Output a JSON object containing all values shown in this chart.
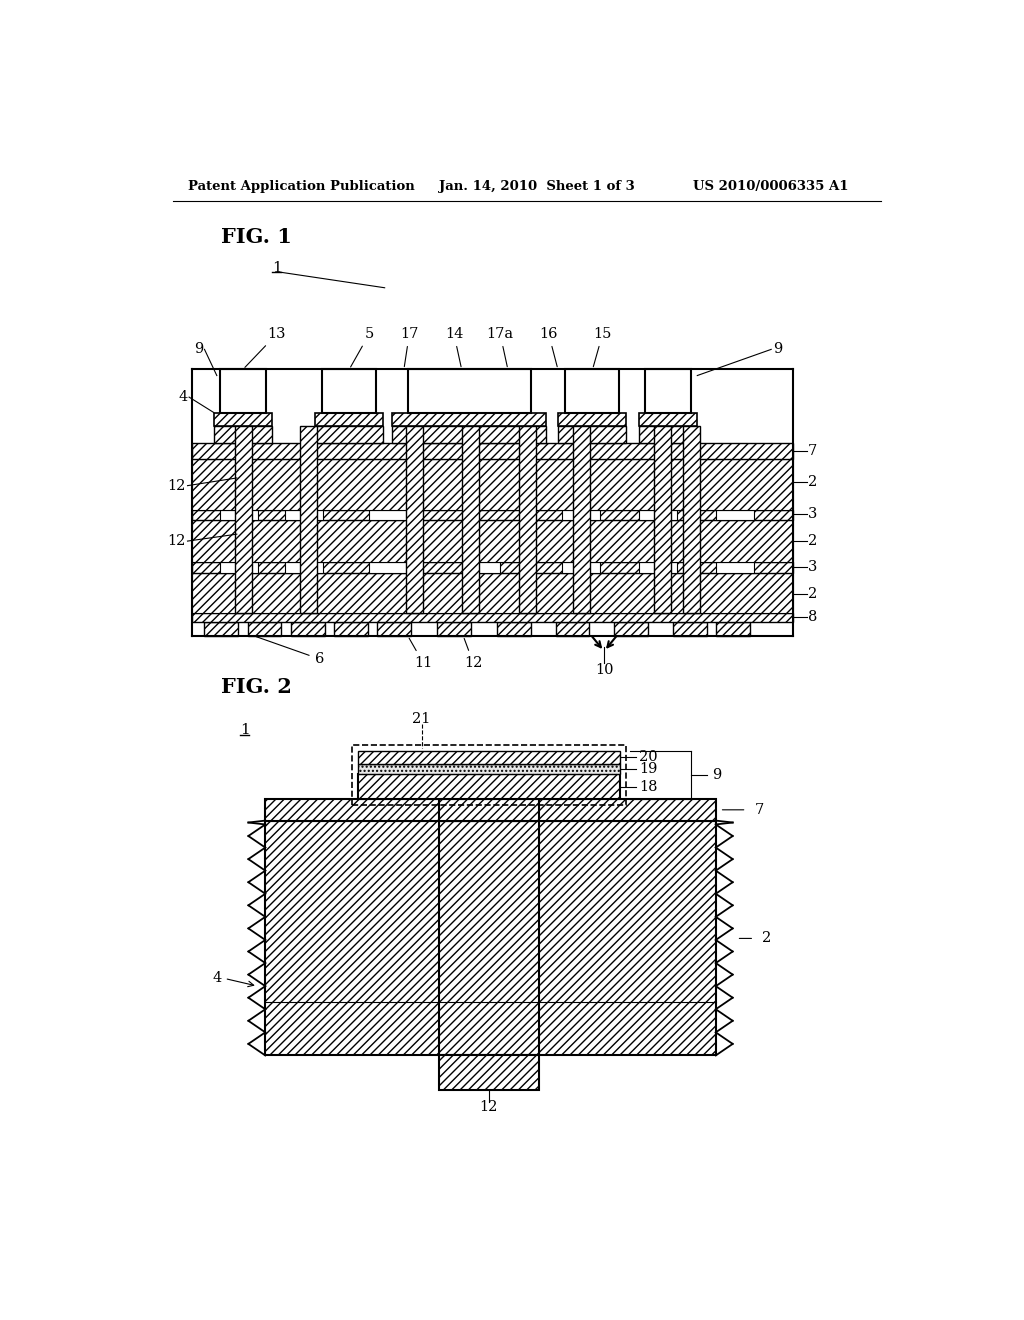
{
  "bg_color": "#ffffff",
  "header_left": "Patent Application Publication",
  "header_mid": "Jan. 14, 2010  Sheet 1 of 3",
  "header_right": "US 2010/0006335 A1",
  "fig1_label": "FIG. 1",
  "fig2_label": "FIG. 2",
  "hatch_ceramic": "////",
  "hatch_conductor": "////",
  "line_color": "#000000"
}
